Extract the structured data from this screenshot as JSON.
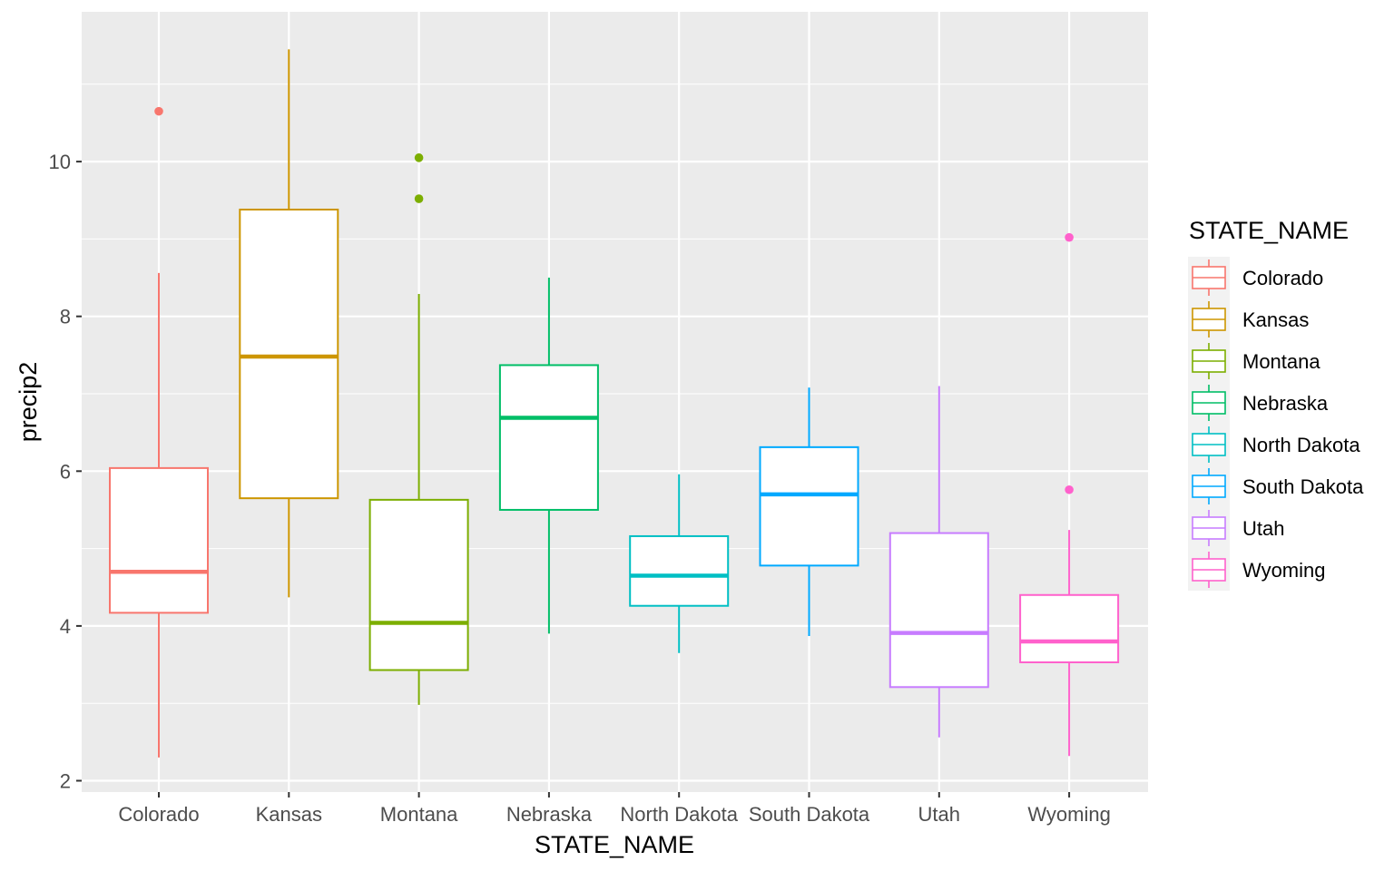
{
  "chart_data": {
    "type": "boxplot",
    "xlabel": "STATE_NAME",
    "ylabel": "precip2",
    "ylim": [
      1.75,
      12.1
    ],
    "yticks": [
      2,
      4,
      6,
      8,
      10
    ],
    "grid": true,
    "legend": {
      "title": "STATE_NAME",
      "position": "right"
    },
    "categories": [
      "Colorado",
      "Kansas",
      "Montana",
      "Nebraska",
      "North Dakota",
      "South Dakota",
      "Utah",
      "Wyoming"
    ],
    "series": [
      {
        "name": "Colorado",
        "color": "#F8766D",
        "lower_whisker": 2.3,
        "q1": 4.17,
        "median": 4.7,
        "q3": 6.04,
        "upper_whisker": 8.56,
        "outliers": [
          10.65
        ]
      },
      {
        "name": "Kansas",
        "color": "#CD9600",
        "lower_whisker": 4.37,
        "q1": 5.65,
        "median": 7.48,
        "q3": 9.38,
        "upper_whisker": 11.45,
        "outliers": []
      },
      {
        "name": "Montana",
        "color": "#7CAE00",
        "lower_whisker": 2.98,
        "q1": 3.43,
        "median": 4.04,
        "q3": 5.63,
        "upper_whisker": 8.29,
        "outliers": [
          10.05,
          9.52
        ]
      },
      {
        "name": "Nebraska",
        "color": "#00BE67",
        "lower_whisker": 3.9,
        "q1": 5.5,
        "median": 6.69,
        "q3": 7.37,
        "upper_whisker": 8.5,
        "outliers": []
      },
      {
        "name": "North Dakota",
        "color": "#00BFC4",
        "lower_whisker": 3.65,
        "q1": 4.26,
        "median": 4.65,
        "q3": 5.16,
        "upper_whisker": 5.96,
        "outliers": []
      },
      {
        "name": "South Dakota",
        "color": "#00A9FF",
        "lower_whisker": 3.87,
        "q1": 4.78,
        "median": 5.7,
        "q3": 6.31,
        "upper_whisker": 7.08,
        "outliers": []
      },
      {
        "name": "Utah",
        "color": "#C77CFF",
        "lower_whisker": 2.56,
        "q1": 3.21,
        "median": 3.91,
        "q3": 5.2,
        "upper_whisker": 7.1,
        "outliers": []
      },
      {
        "name": "Wyoming",
        "color": "#FF61CC",
        "lower_whisker": 2.32,
        "q1": 3.53,
        "median": 3.8,
        "q3": 4.4,
        "upper_whisker": 5.24,
        "outliers": [
          9.02,
          5.76
        ]
      }
    ]
  }
}
